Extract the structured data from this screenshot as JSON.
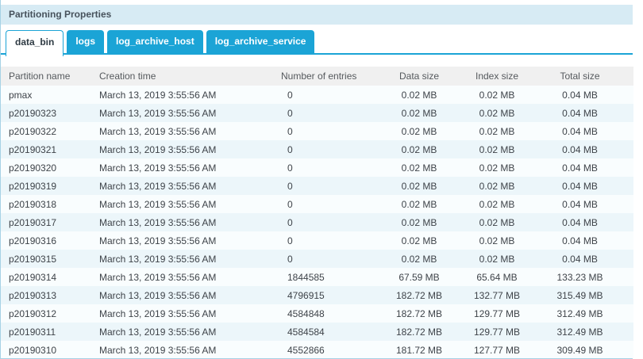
{
  "title": "Partitioning Properties",
  "tabs": [
    {
      "label": "data_bin",
      "active": true
    },
    {
      "label": "logs",
      "active": false
    },
    {
      "label": "log_archive_host",
      "active": false
    },
    {
      "label": "log_archive_service",
      "active": false
    }
  ],
  "table": {
    "columns": [
      {
        "key": "partition-name",
        "label": "Partition name"
      },
      {
        "key": "creation-time",
        "label": "Creation time"
      },
      {
        "key": "entries",
        "label": "Number of entries"
      },
      {
        "key": "data-size",
        "label": "Data size"
      },
      {
        "key": "index-size",
        "label": "Index size"
      },
      {
        "key": "total-size",
        "label": "Total size"
      }
    ],
    "rows": [
      [
        "pmax",
        "March 13, 2019 3:55:56 AM",
        "0",
        "0.02 MB",
        "0.02 MB",
        "0.04 MB"
      ],
      [
        "p20190323",
        "March 13, 2019 3:55:56 AM",
        "0",
        "0.02 MB",
        "0.02 MB",
        "0.04 MB"
      ],
      [
        "p20190322",
        "March 13, 2019 3:55:56 AM",
        "0",
        "0.02 MB",
        "0.02 MB",
        "0.04 MB"
      ],
      [
        "p20190321",
        "March 13, 2019 3:55:56 AM",
        "0",
        "0.02 MB",
        "0.02 MB",
        "0.04 MB"
      ],
      [
        "p20190320",
        "March 13, 2019 3:55:56 AM",
        "0",
        "0.02 MB",
        "0.02 MB",
        "0.04 MB"
      ],
      [
        "p20190319",
        "March 13, 2019 3:55:56 AM",
        "0",
        "0.02 MB",
        "0.02 MB",
        "0.04 MB"
      ],
      [
        "p20190318",
        "March 13, 2019 3:55:56 AM",
        "0",
        "0.02 MB",
        "0.02 MB",
        "0.04 MB"
      ],
      [
        "p20190317",
        "March 13, 2019 3:55:56 AM",
        "0",
        "0.02 MB",
        "0.02 MB",
        "0.04 MB"
      ],
      [
        "p20190316",
        "March 13, 2019 3:55:56 AM",
        "0",
        "0.02 MB",
        "0.02 MB",
        "0.04 MB"
      ],
      [
        "p20190315",
        "March 13, 2019 3:55:56 AM",
        "0",
        "0.02 MB",
        "0.02 MB",
        "0.04 MB"
      ],
      [
        "p20190314",
        "March 13, 2019 3:55:56 AM",
        "1844585",
        "67.59 MB",
        "65.64 MB",
        "133.23 MB"
      ],
      [
        "p20190313",
        "March 13, 2019 3:55:56 AM",
        "4796915",
        "182.72 MB",
        "132.77 MB",
        "315.49 MB"
      ],
      [
        "p20190312",
        "March 13, 2019 3:55:56 AM",
        "4584848",
        "182.72 MB",
        "129.77 MB",
        "312.49 MB"
      ],
      [
        "p20190311",
        "March 13, 2019 3:55:56 AM",
        "4584584",
        "182.72 MB",
        "129.77 MB",
        "312.49 MB"
      ],
      [
        "p20190310",
        "March 13, 2019 3:55:56 AM",
        "4552866",
        "181.72 MB",
        "127.77 MB",
        "309.49 MB"
      ]
    ]
  },
  "colors": {
    "accent": "#1ba4d6",
    "title_bar_bg": "#d7ebf4",
    "title_text": "#47525c",
    "header_bg": "#f0f0f0",
    "header_text": "#55595d",
    "row_odd_bg": "#f9fdfe",
    "row_even_bg": "#ecf6fa",
    "cell_text": "#3e4349",
    "panel_border": "#a7d2e5",
    "active_tab_text": "#2f3b44"
  }
}
